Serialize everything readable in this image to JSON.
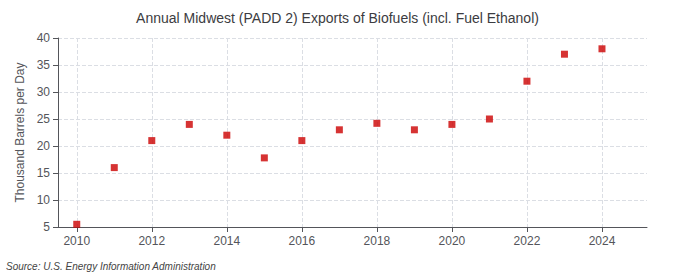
{
  "chart_data": {
    "type": "scatter",
    "title": "Annual Midwest (PADD 2) Exports of Biofuels (incl. Fuel Ethanol)",
    "ylabel": "Thousand Barrels per Day",
    "annotations": [
      "Source: U.S. Energy Information Administration"
    ],
    "x": [
      2010,
      2011,
      2012,
      2013,
      2014,
      2015,
      2016,
      2017,
      2018,
      2019,
      2020,
      2021,
      2022,
      2023,
      2024
    ],
    "values": [
      5.5,
      16.0,
      21.0,
      24.0,
      22.0,
      17.8,
      21.0,
      23.0,
      24.2,
      23.0,
      24.0,
      25.0,
      32.0,
      37.0,
      38.0
    ],
    "color": "#cc0000",
    "marker": "square",
    "xlim": [
      2009.5,
      2025.2
    ],
    "xticks": [
      2010,
      2012,
      2014,
      2016,
      2018,
      2020,
      2022,
      2024
    ],
    "ylim": [
      5,
      40
    ],
    "yticks": [
      5,
      10,
      15,
      20,
      25,
      30,
      35,
      40
    ],
    "grid": true
  }
}
